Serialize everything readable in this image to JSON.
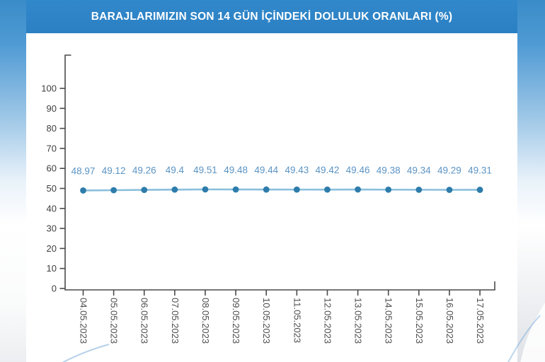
{
  "header": {
    "title": "BARAJLARIMIZIN SON 14 GÜN İÇİNDEKİ DOLULUK ORANLARI (%)"
  },
  "chart_data": {
    "type": "line",
    "title": "BARAJLARIMIZIN SON 14 GÜN İÇİNDEKİ DOLULUK ORANLARI (%)",
    "categories": [
      "04.05.2023",
      "05.05.2023",
      "06.05.2023",
      "07.05.2023",
      "08.05.2023",
      "09.05.2023",
      "10.05.2023",
      "11.05.2023",
      "12.05.2023",
      "13.05.2023",
      "14.05.2023",
      "15.05.2023",
      "16.05.2023",
      "17.05.2023"
    ],
    "values": [
      48.97,
      49.12,
      49.26,
      49.4,
      49.51,
      49.48,
      49.44,
      49.43,
      49.42,
      49.46,
      49.38,
      49.34,
      49.29,
      49.31
    ],
    "value_labels_shown": true,
    "xlabel": "",
    "ylabel": "",
    "yticks": [
      0,
      10,
      20,
      30,
      40,
      50,
      60,
      70,
      80,
      90,
      100
    ],
    "ylim": [
      0,
      117
    ],
    "grid": false,
    "legend": "none",
    "colors": {
      "header_bg": "#2e85c7",
      "header_text": "#ffffff",
      "line": "#8abfdc",
      "marker": "#2d7cab",
      "value_label": "#5b94c4",
      "axis": "#4a4a4a",
      "tick_label": "#3f3f3f",
      "date_label": "#4c4c4c"
    }
  }
}
